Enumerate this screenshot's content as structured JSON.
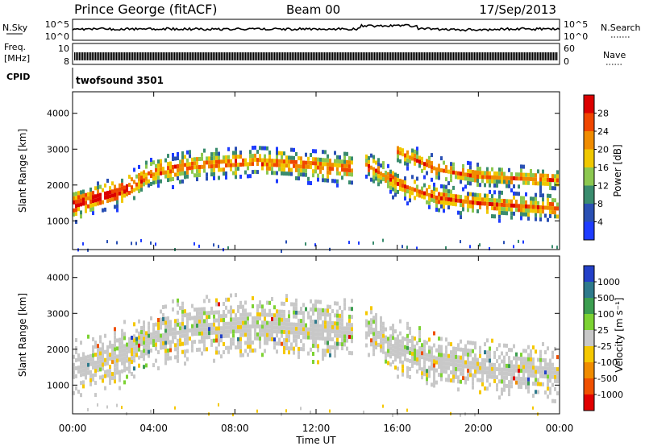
{
  "header": {
    "station": "Prince George (fitACF)",
    "beam": "Beam 00",
    "date": "17/Sep/2013"
  },
  "top_panels": {
    "nsky_label": "N.Sky",
    "nsky_ticks": [
      "10^5",
      "10^0"
    ],
    "nsearch_label": "N.Search",
    "nsearch_ticks": [
      "10^5",
      "10^0"
    ],
    "freq_label_1": "Freq.",
    "freq_label_2": "[MHz]",
    "freq_ticks": [
      "10",
      "8"
    ],
    "nave_label": "Nave",
    "nave_ticks": [
      "60",
      "0"
    ],
    "cpid_label": "CPID",
    "cpid_value": "twofsound 3501"
  },
  "chart_data": [
    {
      "type": "heatmap",
      "panel": "power",
      "ylabel": "Slant Range [km]",
      "xlabel": "",
      "ylim": [
        200,
        4600
      ],
      "yticks": [
        "1000",
        "2000",
        "3000",
        "4000"
      ],
      "colorbar_label": "Power [dB]",
      "colorbar_ticks": [
        "4",
        "8",
        "12",
        "16",
        "20",
        "24",
        "28"
      ],
      "colors": [
        "#1e3cff",
        "#2a50b4",
        "#3a8c6e",
        "#8cc850",
        "#f0c800",
        "#f08c00",
        "#f04600",
        "#dc0000"
      ],
      "bands": [
        {
          "x": [
            0,
            2.5,
            4,
            6,
            9,
            12,
            14
          ],
          "y": [
            1500,
            1900,
            2400,
            2600,
            2700,
            2600,
            2500
          ],
          "width": 500
        },
        {
          "x": [
            14.3,
            16,
            18,
            20,
            24
          ],
          "y": [
            2700,
            2100,
            1700,
            1550,
            1400
          ],
          "width": 450
        },
        {
          "x": [
            16,
            18,
            20,
            24
          ],
          "y": [
            3000,
            2500,
            2300,
            2200
          ],
          "width": 350
        }
      ]
    },
    {
      "type": "heatmap",
      "panel": "velocity",
      "ylabel": "Slant Range [km]",
      "xlabel": "Time UT",
      "xlim": [
        0,
        24
      ],
      "xticks": [
        "00:00",
        "04:00",
        "08:00",
        "12:00",
        "16:00",
        "20:00",
        "00:00"
      ],
      "ylim": [
        200,
        4600
      ],
      "yticks": [
        "1000",
        "2000",
        "3000",
        "4000"
      ],
      "colorbar_label": "Velocity [m s⁻¹]",
      "colorbar_ticks": [
        "1000",
        "500",
        "100",
        "25",
        "-25",
        "-100",
        "-500",
        "-1000"
      ],
      "colors": [
        "#2340c8",
        "#2e7a8c",
        "#3c9e50",
        "#7cd232",
        "#c8c8c8",
        "#f5c800",
        "#f08c00",
        "#f05000",
        "#e10000"
      ],
      "bands": [
        {
          "x": [
            0,
            2.5,
            4,
            6,
            9,
            12,
            14
          ],
          "y": [
            1500,
            1900,
            2400,
            2600,
            2700,
            2600,
            2500
          ],
          "width": 900
        },
        {
          "x": [
            14.3,
            16,
            18,
            20,
            24
          ],
          "y": [
            2700,
            2100,
            1700,
            1550,
            1400
          ],
          "width": 800
        }
      ]
    }
  ]
}
